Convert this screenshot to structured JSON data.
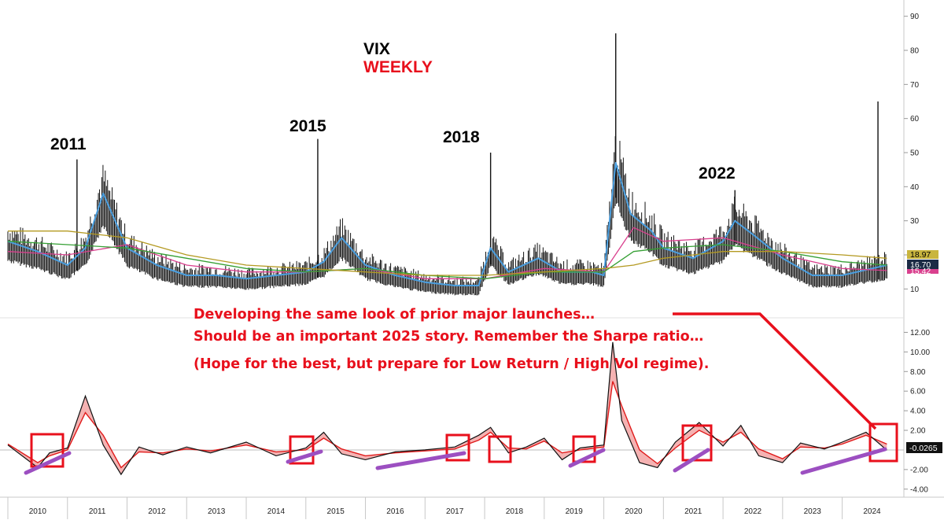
{
  "colors": {
    "price_bars": "#111111",
    "ema_blue": "#4a9fe0",
    "ma_pink": "#d9408e",
    "ma_green": "#36a035",
    "ma_olive": "#b49a22",
    "osc_line": "#111111",
    "osc_signal": "#e01b1b",
    "osc_fill": "#f4aaaa",
    "annotation_red": "#e8101c",
    "trend_purple": "#9c4fc1"
  },
  "titles": {
    "main": "VIX",
    "sub": "WEEKLY"
  },
  "year_labels": [
    "2011",
    "2015",
    "2018",
    "2022"
  ],
  "annotation_lines": [
    "Developing the same look of prior major launches…",
    "Should be an important 2025 story. Remember the Sharpe ratio…",
    "(Hope for the best, but prepare for Low Return / High Vol regime)."
  ],
  "chart_data": [
    {
      "type": "line",
      "name": "price",
      "ylim": [
        5,
        92
      ],
      "y_ticks": [
        "90",
        "80",
        "70",
        "60",
        "50",
        "40",
        "30",
        "20",
        "10"
      ],
      "x_ticks": [
        "2010",
        "2011",
        "2012",
        "2013",
        "2014",
        "2015",
        "2016",
        "2017",
        "2018",
        "2019",
        "2020",
        "2021",
        "2022",
        "2023",
        "2024"
      ],
      "last_value_labels": [
        "18.97",
        "16.70",
        "15.42"
      ],
      "highs": [
        {
          "x": 2011.16,
          "y": 48
        },
        {
          "x": 2015.2,
          "y": 54
        },
        {
          "x": 2018.1,
          "y": 50
        },
        {
          "x": 2020.2,
          "y": 85
        },
        {
          "x": 2022.2,
          "y": 39
        },
        {
          "x": 2024.6,
          "y": 65
        }
      ],
      "series": [
        {
          "name": "",
          "x": [
            2010.0,
            2010.5,
            2011.0,
            2011.3,
            2011.6,
            2012.0,
            2012.5,
            2013.0,
            2013.5,
            2014.0,
            2014.5,
            2015.0,
            2015.3,
            2015.6,
            2016.0,
            2016.5,
            2017.0,
            2017.5,
            2017.9,
            2018.1,
            2018.4,
            2018.9,
            2019.3,
            2019.8,
            2020.0,
            2020.2,
            2020.45,
            2020.8,
            2021.0,
            2021.5,
            2022.0,
            2022.2,
            2022.5,
            2023.0,
            2023.5,
            2024.0,
            2024.5,
            2024.75
          ],
          "y": [
            24,
            21,
            17,
            22,
            38,
            22,
            17,
            14,
            14,
            13,
            14,
            15,
            18,
            25,
            17,
            14,
            12,
            11,
            11,
            22,
            15,
            19,
            15,
            15,
            14,
            47,
            32,
            27,
            22,
            19,
            24,
            30,
            26,
            19,
            14,
            14,
            16,
            17
          ]
        },
        {
          "name": "",
          "x": [
            2010.0,
            2011.0,
            2012.0,
            2013.0,
            2014.0,
            2015.0,
            2016.0,
            2017.0,
            2018.0,
            2019.0,
            2020.0,
            2020.5,
            2021.0,
            2022.0,
            2023.0,
            2024.0,
            2024.75
          ],
          "y": [
            21,
            20,
            23,
            17,
            15,
            15,
            16,
            13,
            13,
            16,
            15,
            28,
            24,
            25,
            20,
            16,
            15.4
          ]
        },
        {
          "name": "",
          "x": [
            2010.0,
            2011.0,
            2012.0,
            2013.0,
            2014.0,
            2015.0,
            2016.0,
            2017.0,
            2018.0,
            2019.0,
            2020.0,
            2020.5,
            2021.0,
            2022.0,
            2023.0,
            2024.0,
            2024.75
          ],
          "y": [
            24,
            23,
            22,
            19,
            16,
            15,
            16,
            14,
            13,
            15,
            15,
            21,
            22,
            23,
            21,
            18,
            17
          ]
        },
        {
          "name": "",
          "x": [
            2010.0,
            2011.0,
            2012.0,
            2013.0,
            2014.0,
            2015.0,
            2016.0,
            2017.0,
            2018.0,
            2019.0,
            2020.0,
            2020.5,
            2021.0,
            2022.0,
            2023.0,
            2024.0,
            2024.75
          ],
          "y": [
            27,
            27,
            25,
            20,
            17,
            16,
            15,
            14,
            14,
            15,
            16,
            17,
            19,
            21,
            21,
            20,
            19
          ]
        }
      ]
    },
    {
      "type": "area",
      "name": "oscillator",
      "ylim": [
        -4.5,
        13
      ],
      "y_ticks": [
        "12.00",
        "10.00",
        "8.00",
        "6.00",
        "4.00",
        "2.00",
        "-2.00",
        "-4.00"
      ],
      "last_value_label": "-0.0265",
      "series": [
        {
          "name": "",
          "x": [
            2010.0,
            2010.5,
            2010.7,
            2011.0,
            2011.3,
            2011.6,
            2011.9,
            2012.2,
            2012.6,
            2013.0,
            2013.4,
            2014.0,
            2014.5,
            2015.0,
            2015.3,
            2015.6,
            2016.0,
            2016.5,
            2017.0,
            2017.5,
            2017.9,
            2018.1,
            2018.4,
            2018.7,
            2019.0,
            2019.3,
            2019.6,
            2020.0,
            2020.15,
            2020.3,
            2020.6,
            2020.9,
            2021.2,
            2021.6,
            2022.0,
            2022.3,
            2022.6,
            2023.0,
            2023.3,
            2023.7,
            2024.0,
            2024.4,
            2024.75
          ],
          "y": [
            0.5,
            -1.8,
            -0.3,
            0.2,
            5.5,
            0.5,
            -2.5,
            0.3,
            -0.5,
            0.3,
            -0.3,
            0.8,
            -0.6,
            0.2,
            1.8,
            -0.4,
            -1.0,
            -0.2,
            0.0,
            0.3,
            1.5,
            2.3,
            -0.3,
            0.3,
            1.2,
            -1.0,
            0.2,
            0.5,
            11.0,
            3.0,
            -1.3,
            -1.8,
            0.8,
            2.8,
            0.4,
            2.5,
            -0.6,
            -1.3,
            0.7,
            0.1,
            0.8,
            1.8,
            -0.03
          ]
        },
        {
          "name": "",
          "x": [
            2010.0,
            2010.5,
            2010.7,
            2011.0,
            2011.3,
            2011.6,
            2011.9,
            2012.2,
            2012.6,
            2013.0,
            2013.4,
            2014.0,
            2014.5,
            2015.0,
            2015.3,
            2015.6,
            2016.0,
            2016.5,
            2017.0,
            2017.5,
            2017.9,
            2018.1,
            2018.4,
            2018.7,
            2019.0,
            2019.3,
            2019.6,
            2020.0,
            2020.15,
            2020.3,
            2020.6,
            2020.9,
            2021.2,
            2021.6,
            2022.0,
            2022.3,
            2022.6,
            2023.0,
            2023.3,
            2023.7,
            2024.0,
            2024.4,
            2024.75
          ],
          "y": [
            0.6,
            -1.3,
            -0.6,
            0.0,
            3.8,
            1.5,
            -1.8,
            -0.2,
            -0.3,
            0.1,
            -0.1,
            0.5,
            -0.2,
            0.0,
            1.2,
            0.1,
            -0.6,
            -0.3,
            -0.1,
            0.1,
            1.0,
            1.8,
            0.2,
            0.1,
            0.9,
            -0.3,
            0.0,
            0.3,
            7.0,
            4.5,
            0.0,
            -1.4,
            0.2,
            2.0,
            0.8,
            1.8,
            0.1,
            -0.9,
            0.3,
            0.2,
            0.6,
            1.5,
            0.6
          ]
        }
      ]
    }
  ]
}
